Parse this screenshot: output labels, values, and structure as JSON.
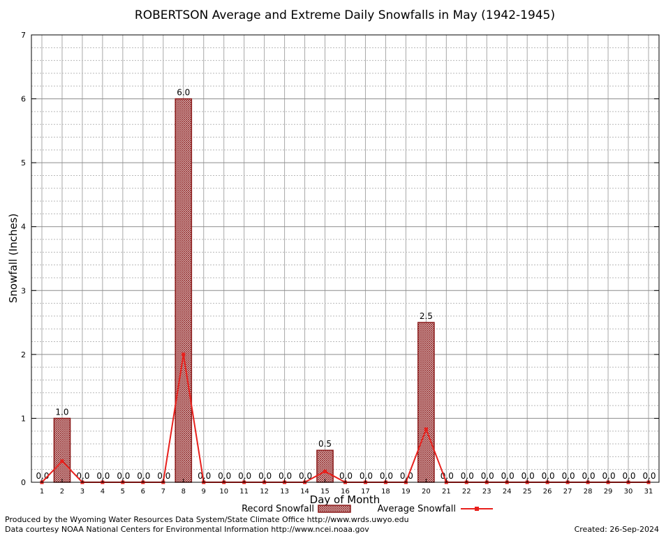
{
  "chart_data": {
    "type": "bar",
    "title": "ROBERTSON Average and Extreme Daily Snowfalls in May (1942-1945)",
    "xlabel": "Day of Month",
    "ylabel": "Snowfall (Inches)",
    "ylim": [
      0,
      7
    ],
    "y_ticks": [
      0,
      1,
      2,
      3,
      4,
      5,
      6,
      7
    ],
    "categories": [
      "1",
      "2",
      "3",
      "4",
      "5",
      "6",
      "7",
      "8",
      "9",
      "10",
      "11",
      "12",
      "13",
      "14",
      "15",
      "16",
      "17",
      "18",
      "19",
      "20",
      "21",
      "22",
      "23",
      "24",
      "25",
      "26",
      "27",
      "28",
      "29",
      "30",
      "31"
    ],
    "series": [
      {
        "name": "Record Snowfall",
        "kind": "bar",
        "color": "#8b1a1a",
        "values": [
          0,
          1.0,
          0,
          0,
          0,
          0,
          0,
          6.0,
          0,
          0,
          0,
          0,
          0,
          0,
          0.5,
          0,
          0,
          0,
          0,
          2.5,
          0,
          0,
          0,
          0,
          0,
          0,
          0,
          0,
          0,
          0,
          0
        ],
        "labels": [
          "0.0",
          "1.0",
          "0.0",
          "0.0",
          "0.0",
          "0.0",
          "0.0",
          "6.0",
          "0.0",
          "0.0",
          "0.0",
          "0.0",
          "0.0",
          "0.0",
          "0.5",
          "0.0",
          "0.0",
          "0.0",
          "0.0",
          "2.5",
          "0.0",
          "0.0",
          "0.0",
          "0.0",
          "0.0",
          "0.0",
          "0.0",
          "0.0",
          "0.0",
          "0.0",
          "0.0"
        ]
      },
      {
        "name": "Average Snowfall",
        "kind": "line",
        "color": "#e8201c",
        "values": [
          0,
          0.33,
          0,
          0,
          0,
          0,
          0,
          2.0,
          0,
          0,
          0,
          0,
          0,
          0,
          0.17,
          0,
          0,
          0,
          0,
          0.83,
          0,
          0,
          0,
          0,
          0,
          0,
          0,
          0,
          0,
          0,
          0
        ]
      }
    ],
    "grid": true,
    "legend_position": "bottom"
  },
  "footer": {
    "produced_by": "Produced by the Wyoming Water Resources Data System/State Climate Office http://www.wrds.uwyo.edu",
    "data_courtesy": "Data courtesy NOAA National Centers for Environmental Information http://www.ncei.noaa.gov",
    "created": "Created: 26-Sep-2024"
  }
}
